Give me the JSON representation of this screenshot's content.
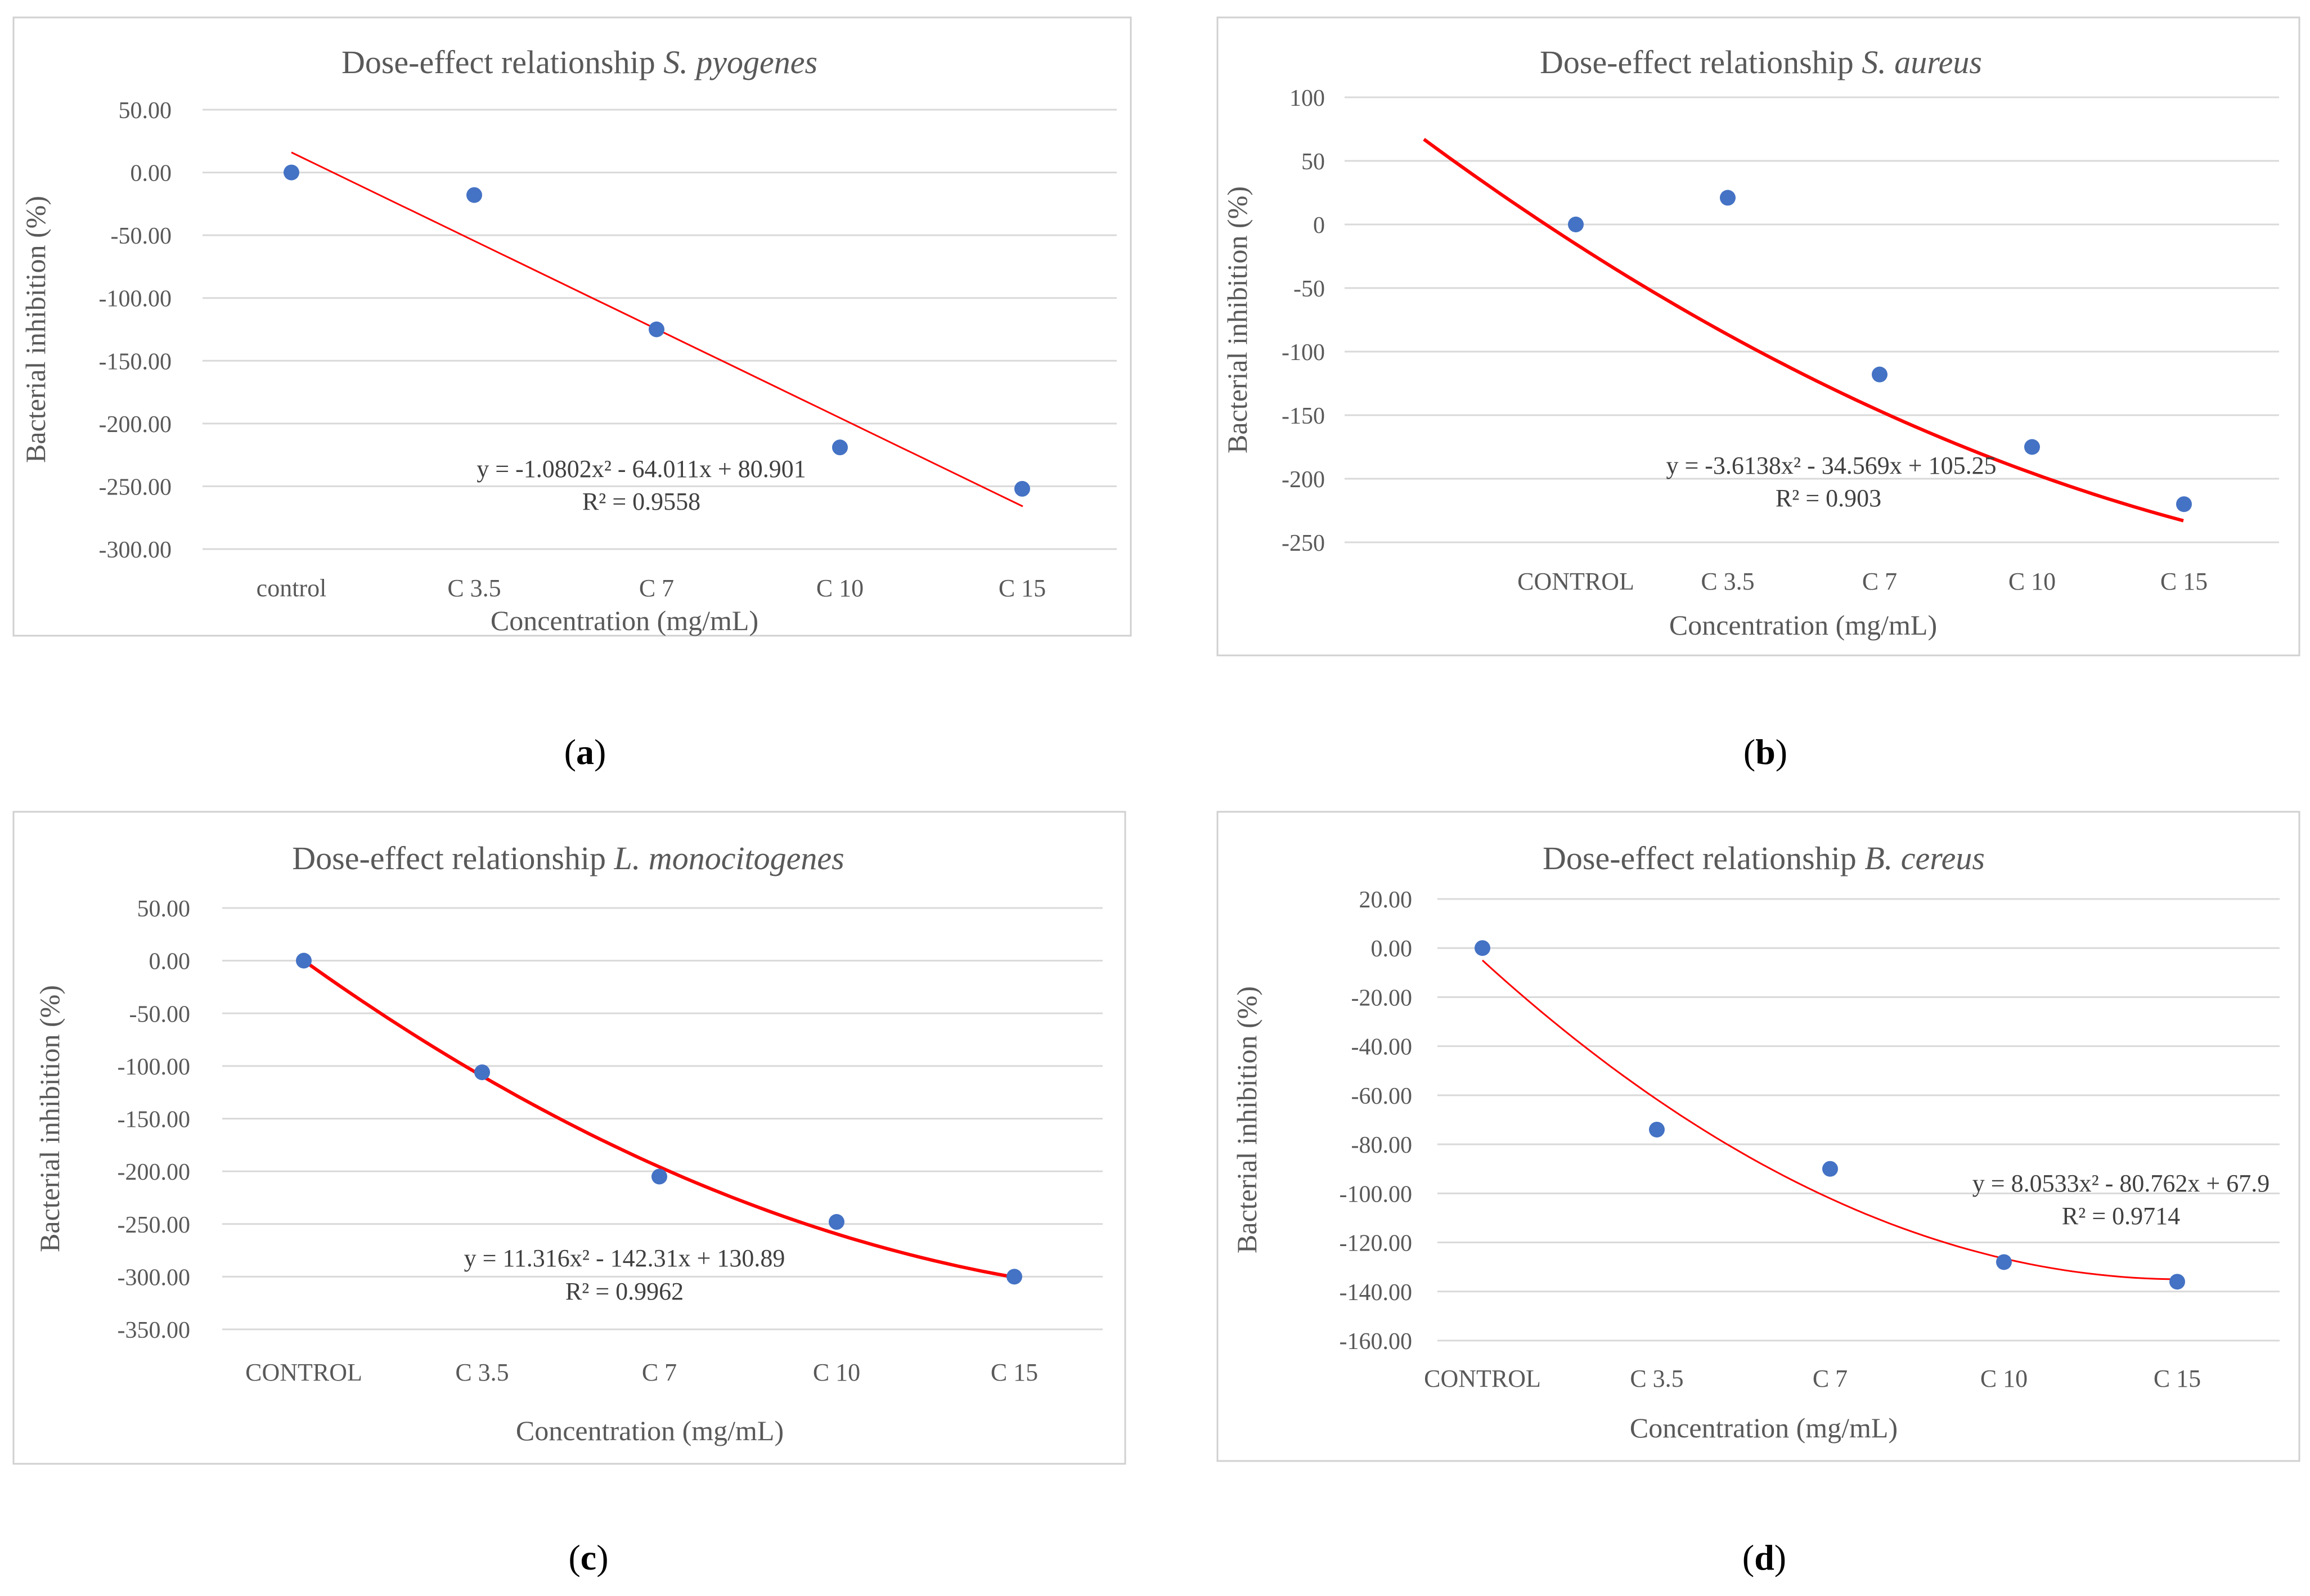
{
  "chart_data": [
    {
      "panel_label": "(a)",
      "type": "scatter",
      "title": "Dose-effect relationship",
      "title_species": "S. pyogenes",
      "xlabel": "Concentration (mg/mL)",
      "ylabel": "Bacterial inhibition (%)",
      "categories": [
        "control",
        "C 3.5",
        "C 7",
        "C 10",
        "C 15"
      ],
      "values": [
        0.0,
        -18.0,
        -125.0,
        -219.0,
        -252.0
      ],
      "ylim": [
        -300,
        50
      ],
      "yticks": [
        50,
        0,
        -50,
        -100,
        -150,
        -200,
        -250,
        -300
      ],
      "ytick_labels": [
        "50.00",
        "0.00",
        "-50.00",
        "-100.00",
        "-150.00",
        "-200.00",
        "-250.00",
        "-300.00"
      ],
      "trendline": {
        "x_start": 1,
        "x_end": 5,
        "y_start": 16,
        "y_end": -266,
        "curvature": 0
      },
      "equation": "y = -1.0802x² - 64.011x + 80.901",
      "r_squared": "R² = 0.9558",
      "grid": true,
      "point_color": "#4472C4",
      "trend_color": "#FF0000"
    },
    {
      "panel_label": "(b)",
      "type": "scatter",
      "title": "Dose-effect relationship",
      "title_species": "S. aureus",
      "xlabel": "Concentration (mg/mL)",
      "ylabel": "Bacterial inhibition (%)",
      "categories": [
        "CONTROL",
        "C 3.5",
        "C 7",
        "C 10",
        "C 15"
      ],
      "values": [
        0,
        21,
        -118,
        -175,
        -220
      ],
      "ylim": [
        -250,
        100
      ],
      "yticks": [
        100,
        50,
        0,
        -50,
        -100,
        -150,
        -200,
        -250
      ],
      "ytick_labels": [
        "100",
        "50",
        "0",
        "-50",
        "-100",
        "-150",
        "-200",
        "-250"
      ],
      "trendline": {
        "x_start": 0,
        "x_end": 5,
        "y_start": 67,
        "y_end": -233,
        "curvature": -35
      },
      "equation": "y = -3.6138x² - 34.569x + 105.25",
      "r_squared": "R² = 0.903",
      "grid": true,
      "point_color": "#4472C4",
      "trend_color": "#FF0000"
    },
    {
      "panel_label": "(c)",
      "type": "scatter",
      "title": "Dose-effect relationship",
      "title_species": "L. monocitogenes",
      "xlabel": "Concentration (mg/mL)",
      "ylabel": "Bacterial inhibition (%)",
      "categories": [
        "CONTROL",
        "C 3.5",
        "C 7",
        "C 10",
        "C 15"
      ],
      "values": [
        0.0,
        -106.0,
        -205.0,
        -248.0,
        -300.0
      ],
      "ylim": [
        -350,
        50
      ],
      "yticks": [
        50,
        0,
        -50,
        -100,
        -150,
        -200,
        -250,
        -300,
        -350
      ],
      "ytick_labels": [
        "50.00",
        "0.00",
        "-50.00",
        "-100.00",
        "-150.00",
        "-200.00",
        "-250.00",
        "-300.00",
        "-350.00"
      ],
      "trendline": {
        "x_start": 1,
        "x_end": 5,
        "y_start": 0,
        "y_end": -301,
        "curvature": 0,
        "quadratic": [
          11.316,
          -142.31,
          130.89
        ]
      },
      "equation": "y = 11.316x² - 142.31x + 130.89",
      "r_squared": "R² = 0.9962",
      "grid": true,
      "point_color": "#4472C4",
      "trend_color": "#FF0000"
    },
    {
      "panel_label": "(d)",
      "type": "scatter",
      "title": "Dose-effect relationship",
      "title_species": "B. cereus",
      "xlabel": "Concentration (mg/mL)",
      "ylabel": "Bacterial inhibition (%)",
      "categories": [
        "CONTROL",
        "C 3.5",
        "C 7",
        "C 10",
        "C 15"
      ],
      "values": [
        0.0,
        -74.0,
        -90.0,
        -128.0,
        -136.0
      ],
      "ylim": [
        -160,
        20
      ],
      "yticks": [
        20,
        0,
        -20,
        -40,
        -60,
        -80,
        -100,
        -120,
        -140,
        -160
      ],
      "ytick_labels": [
        "20.00",
        "0.00",
        "-20.00",
        "-40.00",
        "-60.00",
        "-80.00",
        "-100.00",
        "-120.00",
        "-140.00",
        "-160.00"
      ],
      "trendline": {
        "x_start": 1,
        "x_end": 5,
        "y_start": -5,
        "y_end": -135,
        "curvature": 0,
        "quadratic": [
          8.0533,
          -80.762,
          67.9
        ]
      },
      "equation": "y = 8.0533x² - 80.762x + 67.9",
      "r_squared": "R² = 0.9714",
      "grid": true,
      "point_color": "#4472C4",
      "trend_color": "#FF0000"
    }
  ]
}
